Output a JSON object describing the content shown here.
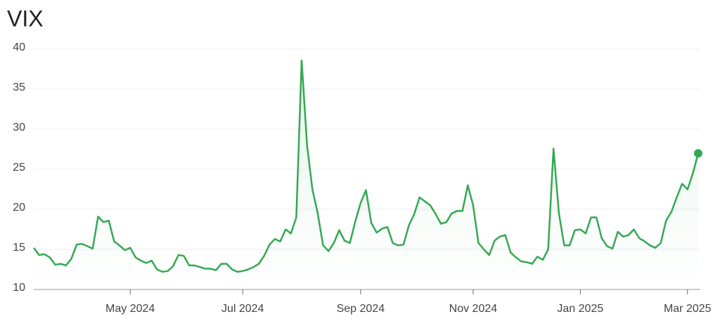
{
  "chart_data": {
    "type": "line",
    "title": "VIX",
    "categories": [
      null,
      null,
      null,
      null,
      null,
      null,
      null,
      null,
      null,
      null,
      null,
      null,
      null,
      null,
      null,
      null,
      null,
      null,
      "May 2024",
      null,
      null,
      null,
      null,
      null,
      null,
      null,
      null,
      null,
      null,
      null,
      null,
      null,
      null,
      null,
      null,
      null,
      null,
      null,
      null,
      "Jul 2024",
      null,
      null,
      null,
      null,
      null,
      null,
      null,
      null,
      null,
      null,
      null,
      null,
      null,
      null,
      null,
      null,
      null,
      null,
      null,
      null,
      null,
      "Sep 2024",
      null,
      null,
      null,
      null,
      null,
      null,
      null,
      null,
      null,
      null,
      null,
      null,
      null,
      null,
      null,
      null,
      null,
      null,
      null,
      null,
      "Nov 2024",
      null,
      null,
      null,
      null,
      null,
      null,
      null,
      null,
      null,
      null,
      null,
      null,
      null,
      null,
      null,
      null,
      null,
      null,
      null,
      "Jan 2025",
      null,
      null,
      null,
      null,
      null,
      null,
      null,
      null,
      null,
      null,
      null,
      null,
      null,
      null,
      null,
      null,
      null,
      null,
      null,
      "Mar 2025",
      null,
      null
    ],
    "series": [
      {
        "name": "VIX",
        "color": "#34a853",
        "values": [
          15.2,
          14.3,
          14.4,
          14.0,
          13.1,
          13.2,
          13.0,
          13.8,
          15.6,
          15.7,
          15.4,
          15.1,
          19.1,
          18.4,
          18.6,
          16.0,
          15.5,
          14.9,
          15.2,
          14.0,
          13.6,
          13.3,
          13.6,
          12.5,
          12.2,
          12.3,
          12.9,
          14.3,
          14.2,
          13.0,
          13.0,
          12.8,
          12.6,
          12.6,
          12.4,
          13.2,
          13.2,
          12.5,
          12.2,
          12.3,
          12.5,
          12.8,
          13.2,
          14.2,
          15.6,
          16.3,
          16.0,
          17.5,
          17.0,
          19.0,
          38.6,
          28.0,
          22.5,
          19.5,
          15.5,
          14.8,
          15.8,
          17.4,
          16.1,
          15.8,
          18.5,
          20.8,
          22.4,
          18.3,
          17.1,
          17.6,
          17.8,
          15.8,
          15.5,
          15.6,
          18.0,
          19.4,
          21.5,
          21.0,
          20.5,
          19.4,
          18.2,
          18.4,
          19.5,
          19.8,
          19.8,
          23.0,
          20.5,
          15.8,
          15.0,
          14.3,
          16.1,
          16.6,
          16.8,
          14.6,
          14.0,
          13.5,
          13.4,
          13.2,
          14.1,
          13.7,
          15.0,
          27.6,
          19.5,
          15.5,
          15.5,
          17.4,
          17.5,
          17.0,
          19.0,
          19.0,
          16.4,
          15.4,
          15.1,
          17.2,
          16.6,
          16.8,
          17.5,
          16.4,
          16.0,
          15.5,
          15.2,
          15.8,
          18.6,
          19.7,
          21.5,
          23.2,
          22.5,
          24.5,
          27.0
        ]
      }
    ],
    "ylim": [
      10,
      40
    ],
    "yticks": [
      10,
      15,
      20,
      25,
      30,
      35,
      40
    ],
    "grid": true
  }
}
